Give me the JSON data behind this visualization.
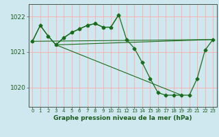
{
  "title": "Graphe pression niveau de la mer (hPa)",
  "background_color": "#cfe8f0",
  "plot_bg_color": "#cfe8f0",
  "grid_color": "#ffaaaa",
  "line_color": "#1a6b1a",
  "ylim": [
    1019.45,
    1022.35
  ],
  "yticks": [
    1020,
    1021,
    1022
  ],
  "xlim": [
    -0.5,
    23.5
  ],
  "xticks": [
    0,
    1,
    2,
    3,
    4,
    5,
    6,
    7,
    8,
    9,
    10,
    11,
    12,
    13,
    14,
    15,
    16,
    17,
    18,
    19,
    20,
    21,
    22,
    23
  ],
  "series_main": {
    "x": [
      0,
      1,
      2,
      3,
      4,
      5,
      6,
      7,
      8,
      9,
      10,
      11,
      12,
      13,
      14,
      15,
      16,
      17,
      18,
      19,
      20,
      21,
      22,
      23
    ],
    "y": [
      1021.3,
      1021.75,
      1021.45,
      1021.2,
      1021.4,
      1021.55,
      1021.65,
      1021.75,
      1021.8,
      1021.7,
      1021.7,
      1022.05,
      1021.35,
      1021.1,
      1020.7,
      1020.25,
      1019.85,
      1019.78,
      1019.78,
      1019.78,
      1019.78,
      1020.25,
      1021.05,
      1021.35
    ],
    "marker": "D",
    "markersize": 2.5
  },
  "series2": {
    "x": [
      0,
      1,
      2,
      3,
      4,
      5,
      6,
      7,
      8,
      9,
      10,
      11
    ],
    "y": [
      1021.3,
      1021.75,
      1021.45,
      1021.2,
      1021.4,
      1021.55,
      1021.65,
      1021.75,
      1021.8,
      1021.7,
      1021.7,
      1022.05
    ],
    "marker": "^",
    "markersize": 2.5
  },
  "line_straight1": {
    "x": [
      0,
      23
    ],
    "y": [
      1021.3,
      1021.35
    ]
  },
  "line_straight2": {
    "x": [
      3,
      23
    ],
    "y": [
      1021.2,
      1021.35
    ]
  },
  "line_straight3": {
    "x": [
      3,
      19
    ],
    "y": [
      1021.2,
      1019.78
    ]
  }
}
